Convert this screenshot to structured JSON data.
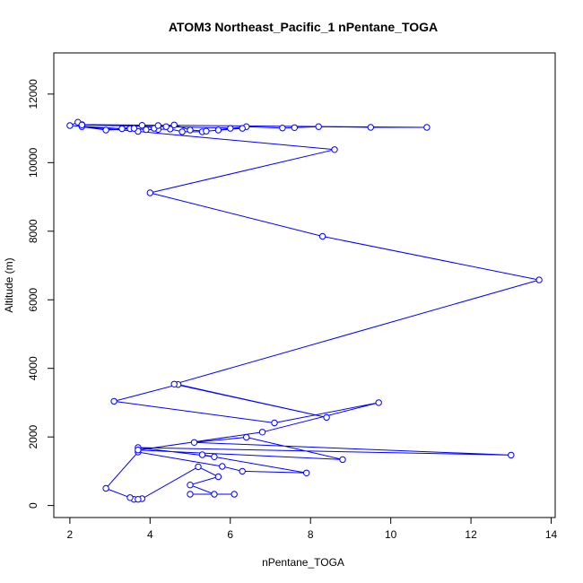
{
  "chart_data": {
    "type": "line",
    "title": "ATOM3 Northeast_Pacific_1 nPentane_TOGA",
    "xlabel": "nPentane_TOGA",
    "ylabel": "Altitude (m)",
    "xlim": [
      1.6,
      14.1
    ],
    "ylim": [
      -350,
      13200
    ],
    "xticks": [
      2,
      4,
      6,
      8,
      10,
      12,
      14
    ],
    "yticks": [
      0,
      2000,
      4000,
      6000,
      8000,
      10000,
      12000
    ],
    "line_color": "#0000ff",
    "marker": "open-circle",
    "grid": false,
    "x": [
      5.0,
      6.1,
      5.6,
      5.0,
      5.7,
      5.2,
      3.8,
      3.6,
      3.7,
      3.5,
      2.9,
      3.7,
      5.8,
      6.3,
      7.9,
      5.3,
      5.6,
      3.7,
      13.0,
      5.1,
      6.4,
      8.8,
      3.7,
      6.8,
      9.7,
      7.1,
      3.1,
      4.7,
      8.4,
      4.6,
      13.7,
      8.3,
      4.0,
      8.6,
      3.7,
      2.3,
      2.9,
      3.5,
      3.6,
      3.9,
      4.2,
      4.5,
      4.8,
      5.3,
      5.7,
      6.0,
      6.4,
      7.3,
      7.6,
      8.2,
      9.5,
      10.9,
      2.3,
      2.2,
      2.0,
      3.3,
      3.8,
      4.1,
      4.2,
      4.4,
      4.6,
      5.0,
      5.4,
      6.3,
      2.3
    ],
    "y": [
      330,
      330,
      330,
      600,
      840,
      1130,
      200,
      180,
      180,
      230,
      500,
      1560,
      1140,
      1000,
      950,
      1480,
      1420,
      1690,
      1470,
      1840,
      1990,
      1340,
      1620,
      2140,
      3000,
      2410,
      3040,
      3530,
      2570,
      3540,
      6580,
      7850,
      9120,
      10380,
      10910,
      11050,
      10950,
      10990,
      11000,
      10960,
      10970,
      10980,
      10900,
      10900,
      10950,
      11000,
      11050,
      11010,
      11020,
      11050,
      11030,
      11030,
      11110,
      11180,
      11080,
      10990,
      11090,
      11000,
      11080,
      11050,
      11100,
      10950,
      10920,
      11000,
      11100
    ]
  }
}
